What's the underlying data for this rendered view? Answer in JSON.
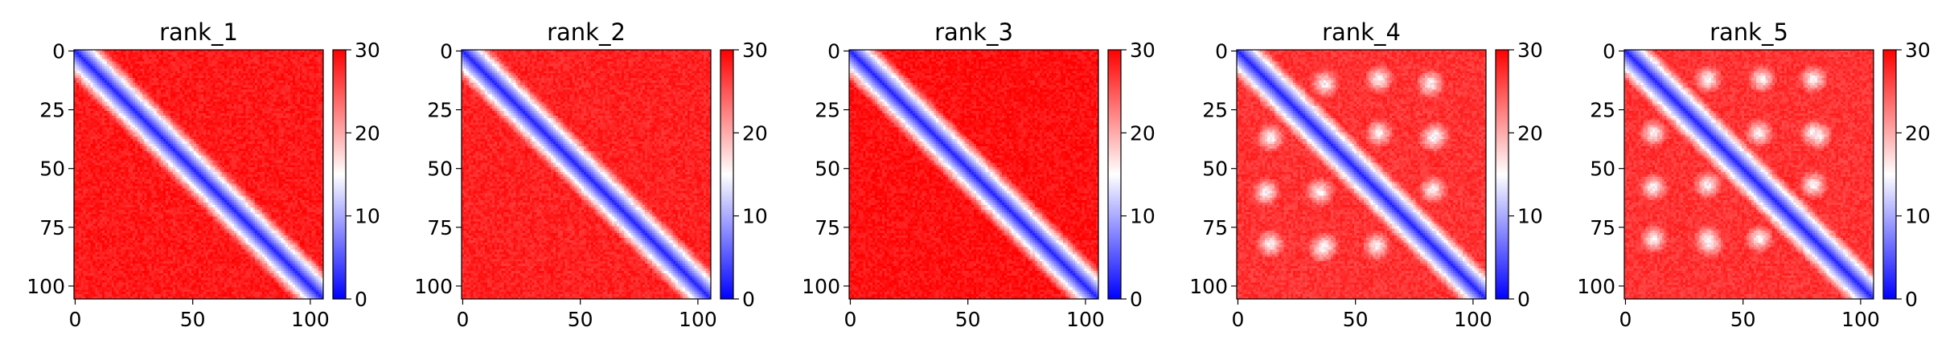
{
  "chart_data": [
    {
      "type": "heatmap",
      "title": "rank_1",
      "matrix_size": 106,
      "axis_ticks": [
        0,
        25,
        50,
        75,
        100
      ],
      "x_ticks": [
        0,
        50,
        100
      ],
      "xlim": [
        0,
        105
      ],
      "ylim": [
        105,
        0
      ],
      "colorbar": {
        "min": 0,
        "max": 30,
        "ticks": [
          0,
          10,
          20,
          30
        ],
        "colormap": "bwr"
      },
      "pattern": {
        "diagonal_band_width": 6,
        "off_diagonal_level": 28.5,
        "blobs": []
      }
    },
    {
      "type": "heatmap",
      "title": "rank_2",
      "matrix_size": 106,
      "axis_ticks": [
        0,
        25,
        50,
        75,
        100
      ],
      "x_ticks": [
        0,
        50,
        100
      ],
      "xlim": [
        0,
        105
      ],
      "ylim": [
        105,
        0
      ],
      "colorbar": {
        "min": 0,
        "max": 30,
        "ticks": [
          0,
          10,
          20,
          30
        ],
        "colormap": "bwr"
      },
      "pattern": {
        "diagonal_band_width": 6,
        "off_diagonal_level": 28,
        "blobs": []
      }
    },
    {
      "type": "heatmap",
      "title": "rank_3",
      "matrix_size": 106,
      "axis_ticks": [
        0,
        25,
        50,
        75,
        100
      ],
      "x_ticks": [
        0,
        50,
        100
      ],
      "xlim": [
        0,
        105
      ],
      "ylim": [
        105,
        0
      ],
      "colorbar": {
        "min": 0,
        "max": 30,
        "ticks": [
          0,
          10,
          20,
          30
        ],
        "colormap": "bwr"
      },
      "pattern": {
        "diagonal_band_width": 6,
        "off_diagonal_level": 29,
        "blobs": []
      }
    },
    {
      "type": "heatmap",
      "title": "rank_4",
      "matrix_size": 106,
      "axis_ticks": [
        0,
        25,
        50,
        75,
        100
      ],
      "x_ticks": [
        0,
        50,
        100
      ],
      "xlim": [
        0,
        105
      ],
      "ylim": [
        105,
        0
      ],
      "colorbar": {
        "min": 0,
        "max": 30,
        "ticks": [
          0,
          10,
          20,
          30
        ],
        "colormap": "bwr"
      },
      "pattern": {
        "diagonal_band_width": 6,
        "off_diagonal_level": 27,
        "blobs": [
          [
            14,
            37
          ],
          [
            37,
            14
          ],
          [
            35,
            60
          ],
          [
            60,
            35
          ],
          [
            59,
            83
          ],
          [
            83,
            59
          ],
          [
            60,
            12
          ],
          [
            12,
            60
          ],
          [
            84,
            36
          ],
          [
            36,
            84
          ],
          [
            37,
            83
          ],
          [
            83,
            37
          ],
          [
            14,
            82
          ],
          [
            82,
            14
          ]
        ]
      }
    },
    {
      "type": "heatmap",
      "title": "rank_5",
      "matrix_size": 106,
      "axis_ticks": [
        0,
        25,
        50,
        75,
        100
      ],
      "x_ticks": [
        0,
        50,
        100
      ],
      "xlim": [
        0,
        105
      ],
      "ylim": [
        105,
        0
      ],
      "colorbar": {
        "min": 0,
        "max": 30,
        "ticks": [
          0,
          10,
          20,
          30
        ],
        "colormap": "bwr"
      },
      "pattern": {
        "diagonal_band_width": 6,
        "off_diagonal_level": 27,
        "blobs": [
          [
            12,
            35
          ],
          [
            35,
            12
          ],
          [
            35,
            57
          ],
          [
            57,
            35
          ],
          [
            57,
            80
          ],
          [
            80,
            57
          ],
          [
            58,
            12
          ],
          [
            12,
            58
          ],
          [
            80,
            35
          ],
          [
            35,
            80
          ],
          [
            36,
            82
          ],
          [
            82,
            36
          ],
          [
            12,
            80
          ],
          [
            80,
            12
          ]
        ]
      }
    }
  ]
}
